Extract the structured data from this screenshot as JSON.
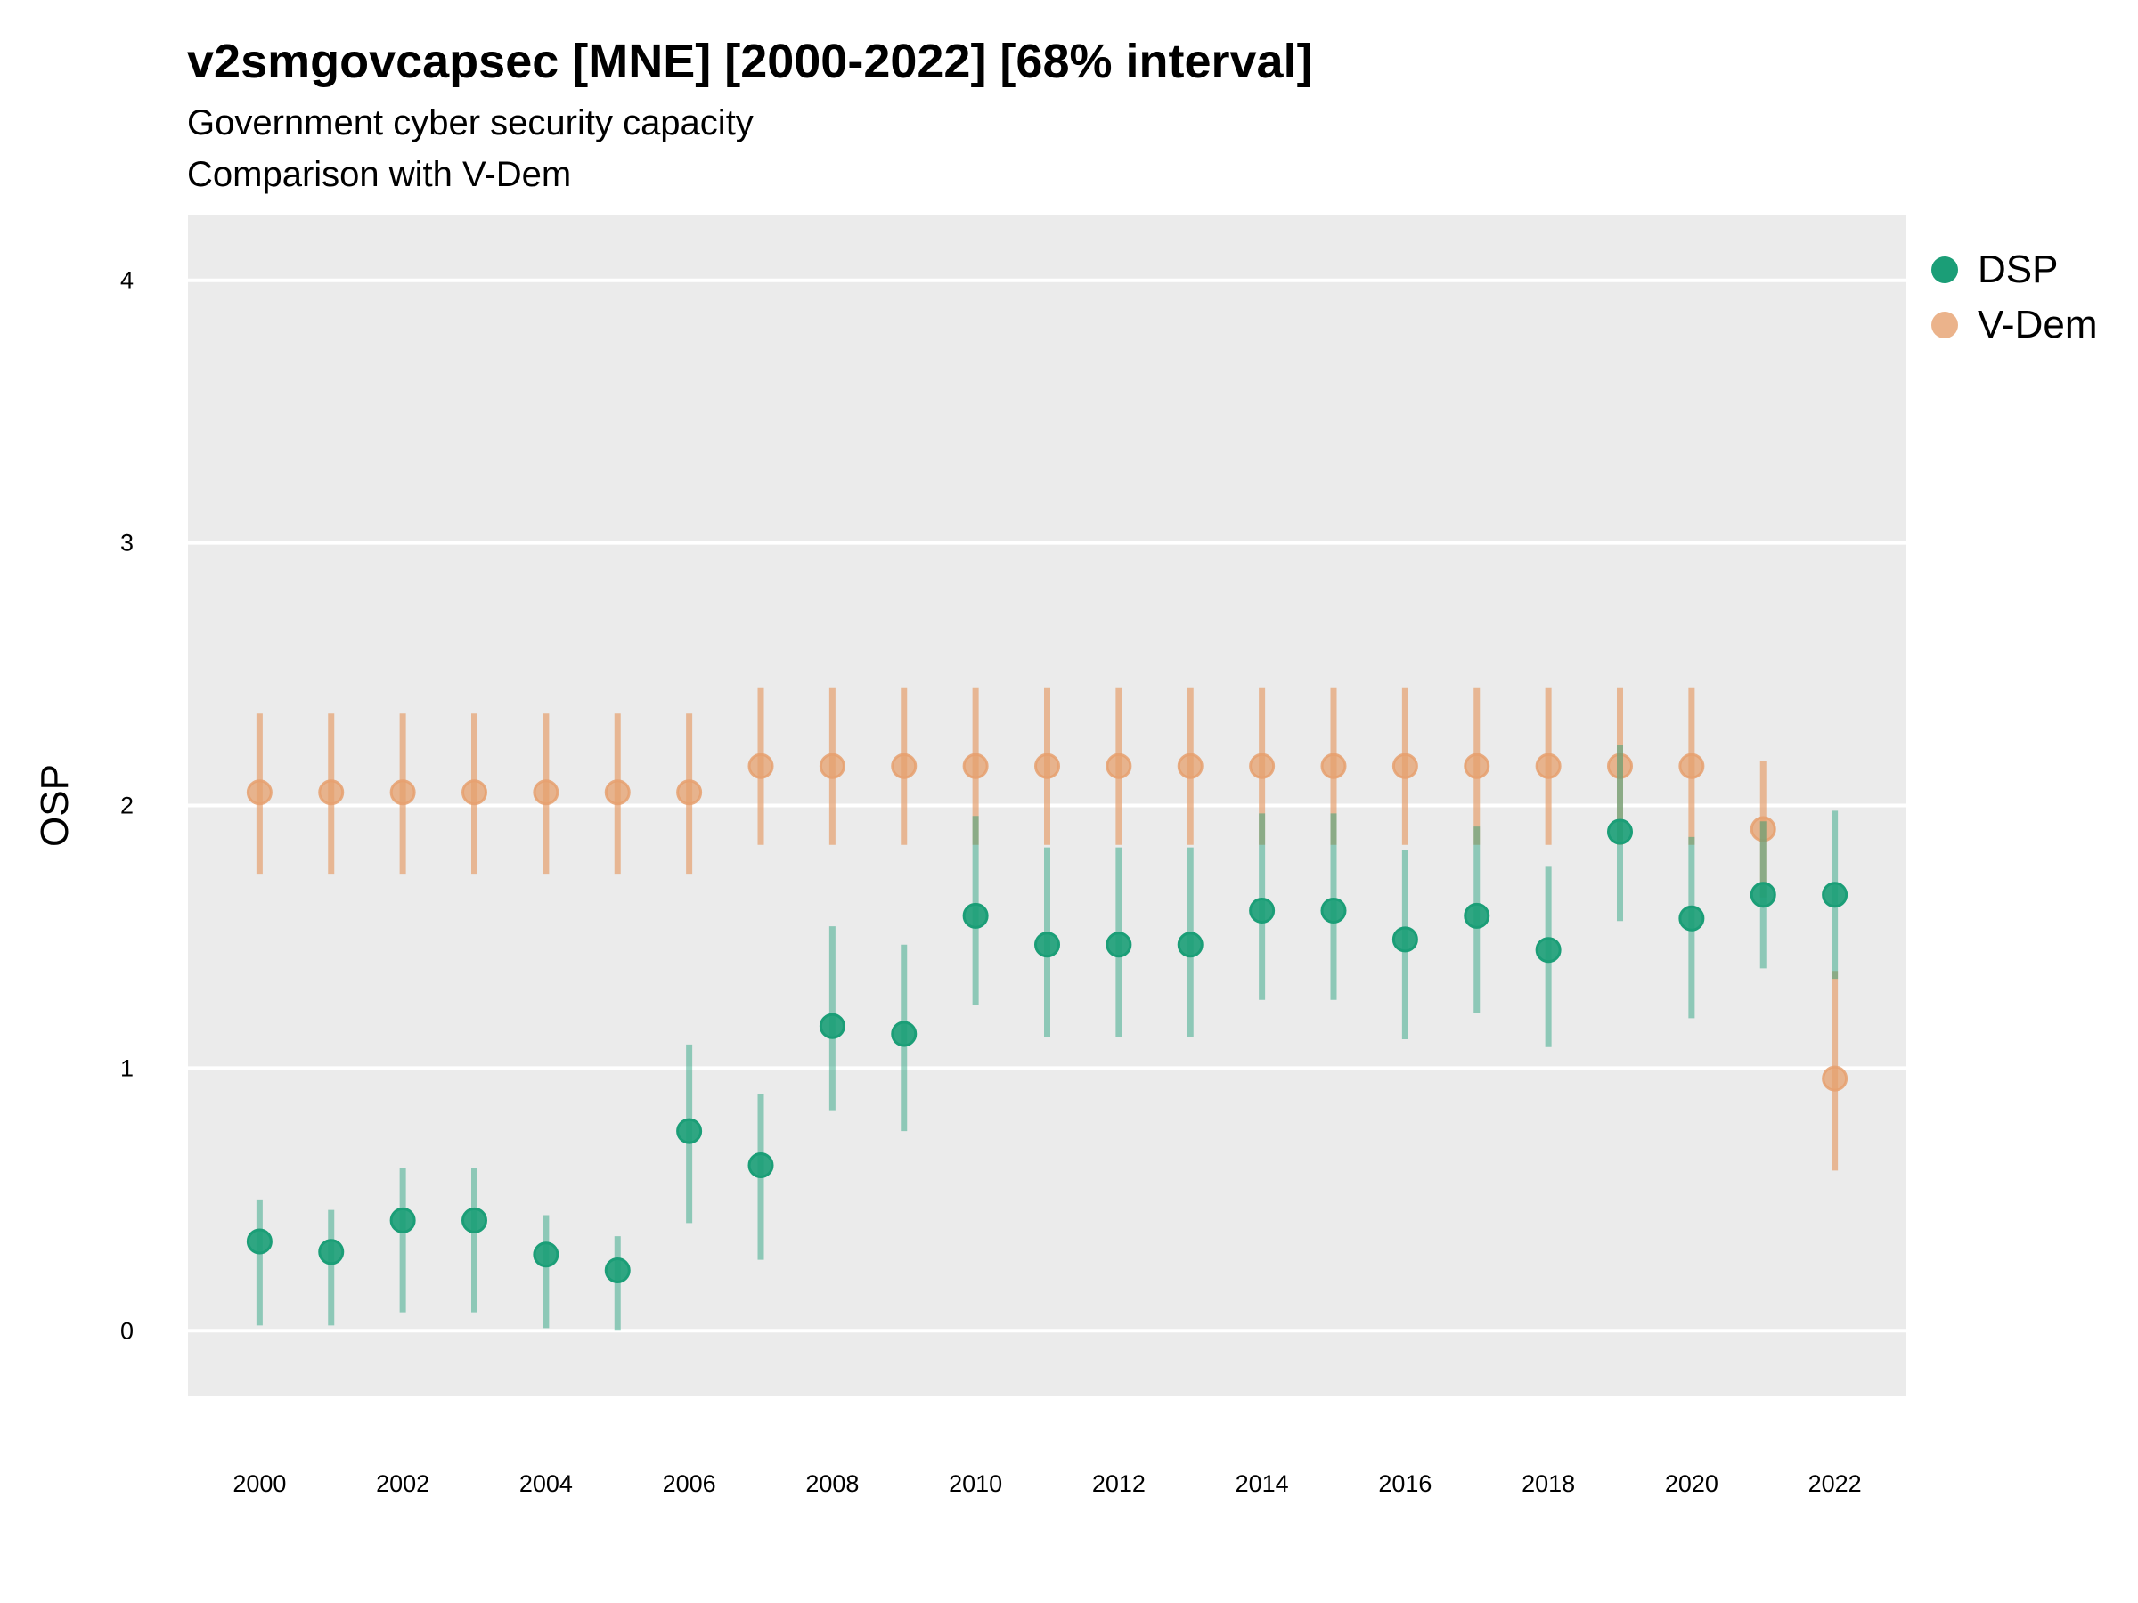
{
  "title": "v2smgovcapsec [MNE] [2000-2022] [68% interval]",
  "subtitle_line1": "Government cyber security capacity",
  "subtitle_line2": "Comparison with V-Dem",
  "colors": {
    "dsp": "#1b9e77",
    "vdem": "#e6a06e",
    "panel": "#ebebeb",
    "grid": "#ffffff"
  },
  "chart_data": {
    "type": "scatter",
    "title": "v2smgovcapsec [MNE] [2000-2022] [68% interval]",
    "ylabel": "OSP",
    "xlabel": "",
    "xlim": [
      1999,
      2023
    ],
    "ylim": [
      -0.25,
      4.25
    ],
    "x_ticks": [
      2000,
      2002,
      2004,
      2006,
      2008,
      2010,
      2012,
      2014,
      2016,
      2018,
      2020,
      2022
    ],
    "y_ticks": [
      0,
      1,
      2,
      3,
      4
    ],
    "grid": true,
    "legend_position": "right",
    "series": [
      {
        "name": "DSP",
        "color": "#1b9e77",
        "points": [
          {
            "x": 2000,
            "y": 0.34,
            "lo": 0.02,
            "hi": 0.5
          },
          {
            "x": 2001,
            "y": 0.3,
            "lo": 0.02,
            "hi": 0.46
          },
          {
            "x": 2002,
            "y": 0.42,
            "lo": 0.07,
            "hi": 0.62
          },
          {
            "x": 2003,
            "y": 0.42,
            "lo": 0.07,
            "hi": 0.62
          },
          {
            "x": 2004,
            "y": 0.29,
            "lo": 0.01,
            "hi": 0.44
          },
          {
            "x": 2005,
            "y": 0.23,
            "lo": 0.0,
            "hi": 0.36
          },
          {
            "x": 2006,
            "y": 0.76,
            "lo": 0.41,
            "hi": 1.09
          },
          {
            "x": 2007,
            "y": 0.63,
            "lo": 0.27,
            "hi": 0.9
          },
          {
            "x": 2008,
            "y": 1.16,
            "lo": 0.84,
            "hi": 1.54
          },
          {
            "x": 2009,
            "y": 1.13,
            "lo": 0.76,
            "hi": 1.47
          },
          {
            "x": 2010,
            "y": 1.58,
            "lo": 1.24,
            "hi": 1.96
          },
          {
            "x": 2011,
            "y": 1.47,
            "lo": 1.12,
            "hi": 1.84
          },
          {
            "x": 2012,
            "y": 1.47,
            "lo": 1.12,
            "hi": 1.84
          },
          {
            "x": 2013,
            "y": 1.47,
            "lo": 1.12,
            "hi": 1.84
          },
          {
            "x": 2014,
            "y": 1.6,
            "lo": 1.26,
            "hi": 1.97
          },
          {
            "x": 2015,
            "y": 1.6,
            "lo": 1.26,
            "hi": 1.97
          },
          {
            "x": 2016,
            "y": 1.49,
            "lo": 1.11,
            "hi": 1.83
          },
          {
            "x": 2017,
            "y": 1.58,
            "lo": 1.21,
            "hi": 1.92
          },
          {
            "x": 2018,
            "y": 1.45,
            "lo": 1.08,
            "hi": 1.77
          },
          {
            "x": 2019,
            "y": 1.9,
            "lo": 1.56,
            "hi": 2.23
          },
          {
            "x": 2020,
            "y": 1.57,
            "lo": 1.19,
            "hi": 1.88
          },
          {
            "x": 2021,
            "y": 1.66,
            "lo": 1.38,
            "hi": 1.94
          },
          {
            "x": 2022,
            "y": 1.66,
            "lo": 1.34,
            "hi": 1.98
          }
        ]
      },
      {
        "name": "V-Dem",
        "color": "#e6a06e",
        "points": [
          {
            "x": 2000,
            "y": 2.05,
            "lo": 1.74,
            "hi": 2.35
          },
          {
            "x": 2001,
            "y": 2.05,
            "lo": 1.74,
            "hi": 2.35
          },
          {
            "x": 2002,
            "y": 2.05,
            "lo": 1.74,
            "hi": 2.35
          },
          {
            "x": 2003,
            "y": 2.05,
            "lo": 1.74,
            "hi": 2.35
          },
          {
            "x": 2004,
            "y": 2.05,
            "lo": 1.74,
            "hi": 2.35
          },
          {
            "x": 2005,
            "y": 2.05,
            "lo": 1.74,
            "hi": 2.35
          },
          {
            "x": 2006,
            "y": 2.05,
            "lo": 1.74,
            "hi": 2.35
          },
          {
            "x": 2007,
            "y": 2.15,
            "lo": 1.85,
            "hi": 2.45
          },
          {
            "x": 2008,
            "y": 2.15,
            "lo": 1.85,
            "hi": 2.45
          },
          {
            "x": 2009,
            "y": 2.15,
            "lo": 1.85,
            "hi": 2.45
          },
          {
            "x": 2010,
            "y": 2.15,
            "lo": 1.85,
            "hi": 2.45
          },
          {
            "x": 2011,
            "y": 2.15,
            "lo": 1.85,
            "hi": 2.45
          },
          {
            "x": 2012,
            "y": 2.15,
            "lo": 1.85,
            "hi": 2.45
          },
          {
            "x": 2013,
            "y": 2.15,
            "lo": 1.85,
            "hi": 2.45
          },
          {
            "x": 2014,
            "y": 2.15,
            "lo": 1.85,
            "hi": 2.45
          },
          {
            "x": 2015,
            "y": 2.15,
            "lo": 1.85,
            "hi": 2.45
          },
          {
            "x": 2016,
            "y": 2.15,
            "lo": 1.85,
            "hi": 2.45
          },
          {
            "x": 2017,
            "y": 2.15,
            "lo": 1.85,
            "hi": 2.45
          },
          {
            "x": 2018,
            "y": 2.15,
            "lo": 1.85,
            "hi": 2.45
          },
          {
            "x": 2019,
            "y": 2.15,
            "lo": 1.85,
            "hi": 2.45
          },
          {
            "x": 2020,
            "y": 2.15,
            "lo": 1.85,
            "hi": 2.45
          },
          {
            "x": 2021,
            "y": 1.91,
            "lo": 1.65,
            "hi": 2.17
          },
          {
            "x": 2022,
            "y": 0.96,
            "lo": 0.61,
            "hi": 1.37
          }
        ]
      }
    ]
  },
  "legend": [
    {
      "label": "DSP",
      "color": "#1b9e77"
    },
    {
      "label": "V-Dem",
      "color": "#e6a06e"
    }
  ]
}
